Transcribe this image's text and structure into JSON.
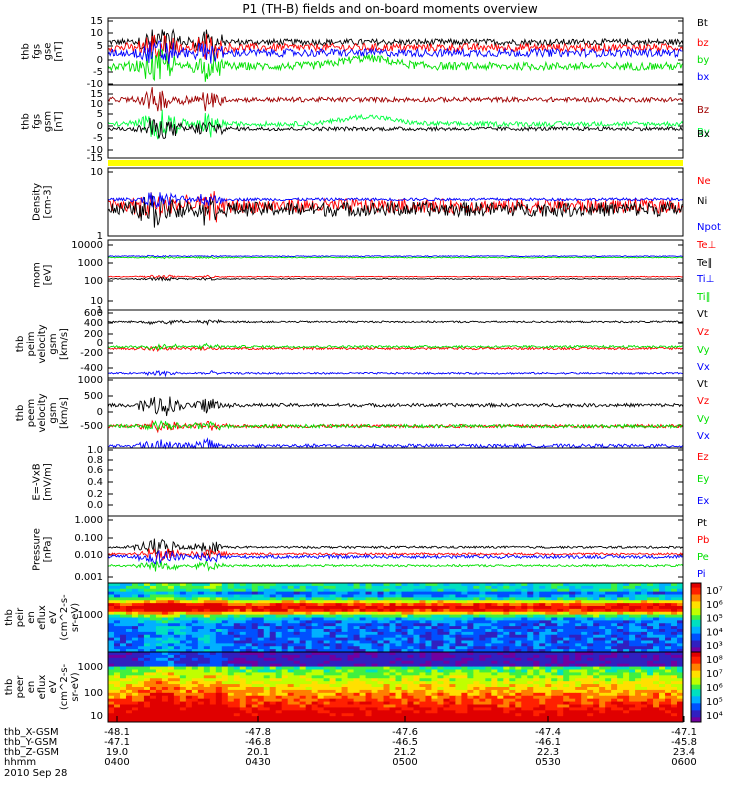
{
  "title": "P1 (TH-B) fields and on-board moments overview",
  "colors": {
    "black": "#000000",
    "red": "#ff0000",
    "darkred": "#a00000",
    "green": "#00e000",
    "lime": "#00ff40",
    "blue": "#0000ff",
    "yellow": "#ffff00"
  },
  "chart_data": [
    {
      "id": "fgs",
      "type": "line",
      "ylabel": [
        "thb",
        "fgs",
        "gse",
        "[nT]"
      ],
      "ylim": [
        -10,
        15
      ],
      "yscale": "linear",
      "ticks": [
        "15",
        "10",
        "5",
        "0",
        "-5",
        "-10"
      ],
      "series": [
        {
          "name": "Bt",
          "color": "#000000",
          "base": 6,
          "amp": 1.2,
          "burst": 6
        },
        {
          "name": "bz",
          "color": "#ff0000",
          "base": 4,
          "amp": 1.5,
          "burst": 6
        },
        {
          "name": "by",
          "color": "#00e000",
          "base": -3,
          "amp": 1.5,
          "burst": 6
        },
        {
          "name": "bx",
          "color": "#0000ff",
          "base": 2,
          "amp": 1.5,
          "burst": 5
        }
      ]
    },
    {
      "id": "fgs_gsm",
      "type": "line",
      "ylabel": [
        "thb",
        "fgs",
        "gsm",
        "[nT]"
      ],
      "ylim": [
        -15,
        15
      ],
      "yscale": "linear",
      "ticks": [
        "15",
        "10",
        "5",
        "0",
        "-5",
        "-10",
        "-15"
      ],
      "series": [
        {
          "name": "Bz",
          "color": "#a00000",
          "base": 9,
          "amp": 1.0,
          "burst": 5
        },
        {
          "name": "By",
          "color": "#00ff40",
          "base": -1,
          "amp": 1.0,
          "burst": 6
        },
        {
          "name": "Bx",
          "color": "#000000",
          "base": -3,
          "amp": 0.8,
          "burst": 5
        }
      ]
    },
    {
      "id": "density",
      "type": "line",
      "ylabel": [
        "Density",
        "[cm-3]"
      ],
      "ylim": [
        1,
        15
      ],
      "yscale": "log",
      "ticks": [
        "10",
        "1"
      ],
      "series": [
        {
          "name": "Ne",
          "color": "#ff0000",
          "base": 3.3,
          "amp": 0.25,
          "burst": 0.6
        },
        {
          "name": "Ni",
          "color": "#000000",
          "base": 2.9,
          "amp": 0.25,
          "burst": 0.5
        },
        {
          "name": "Npot",
          "color": "#0000ff",
          "base": 4.3,
          "amp": 0.05,
          "burst": 0.3
        }
      ]
    },
    {
      "id": "temp",
      "type": "line",
      "ylabel": [
        "mom",
        "[eV]"
      ],
      "ylim": [
        1,
        10000
      ],
      "yscale": "log",
      "ticks": [
        "10000",
        "1000",
        "100",
        "10",
        "1"
      ],
      "series": [
        {
          "name": "Te⊥",
          "color": "#ff0000",
          "base": 80,
          "amp": 0.05,
          "burst": 0.2
        },
        {
          "name": "Te∥",
          "color": "#000000",
          "base": 60,
          "amp": 0.05,
          "burst": 0.2
        },
        {
          "name": "Ti⊥",
          "color": "#0000ff",
          "base": 1200,
          "amp": 0.05,
          "burst": 0.1
        },
        {
          "name": "Ti∥",
          "color": "#00e000",
          "base": 1000,
          "amp": 0.05,
          "burst": 0.1
        }
      ]
    },
    {
      "id": "peim",
      "type": "line",
      "ylabel": [
        "thb",
        "peim",
        "velocity",
        "gsm",
        "[km/s]"
      ],
      "ylim": [
        -500,
        650
      ],
      "yscale": "linear",
      "ticks": [
        "600",
        "400",
        "200",
        "0",
        "-200",
        "-400"
      ],
      "series": [
        {
          "name": "Vt",
          "color": "#000000",
          "base": 450,
          "amp": 15,
          "burst": 40
        },
        {
          "name": "Vz",
          "color": "#ff0000",
          "base": 0,
          "amp": 20,
          "burst": 40
        },
        {
          "name": "Vy",
          "color": "#00e000",
          "base": 30,
          "amp": 20,
          "burst": 50
        },
        {
          "name": "Vx",
          "color": "#0000ff",
          "base": -420,
          "amp": 15,
          "burst": 40
        }
      ]
    },
    {
      "id": "peem",
      "type": "line",
      "ylabel": [
        "thb",
        "peem",
        "velocity",
        "gsm",
        "[km/s]"
      ],
      "ylim": [
        -500,
        1100
      ],
      "yscale": "linear",
      "ticks": [
        "1000",
        "500",
        "0",
        "-500"
      ],
      "series": [
        {
          "name": "Vt",
          "color": "#000000",
          "base": 480,
          "amp": 40,
          "burst": 250
        },
        {
          "name": "Vz",
          "color": "#ff0000",
          "base": 0,
          "amp": 40,
          "burst": 120
        },
        {
          "name": "Vy",
          "color": "#00e000",
          "base": 0,
          "amp": 40,
          "burst": 120
        },
        {
          "name": "Vx",
          "color": "#0000ff",
          "base": -450,
          "amp": 40,
          "burst": 200
        }
      ]
    },
    {
      "id": "efield",
      "type": "line",
      "ylabel": [
        "E=-VxB",
        "[mV/m]"
      ],
      "ylim": [
        0,
        1
      ],
      "yscale": "linear",
      "ticks": [
        "1.0",
        "0.8",
        "0.6",
        "0.4",
        "0.2",
        "0.0"
      ],
      "series": [
        {
          "name": "Ez",
          "color": "#ff0000"
        },
        {
          "name": "Ey",
          "color": "#00e000"
        },
        {
          "name": "Ex",
          "color": "#0000ff"
        }
      ]
    },
    {
      "id": "pressure",
      "type": "line",
      "ylabel": [
        "Pressure",
        "[nPa]"
      ],
      "ylim": [
        0.001,
        1.0
      ],
      "yscale": "log",
      "ticks": [
        "1.000",
        "0.100",
        "0.010",
        "0.001"
      ],
      "series": [
        {
          "name": "Pt",
          "color": "#000000",
          "base": 0.04,
          "amp": 0.1,
          "burst": 0.8
        },
        {
          "name": "Pb",
          "color": "#ff0000",
          "base": 0.02,
          "amp": 0.1,
          "burst": 0.6
        },
        {
          "name": "Pe",
          "color": "#00e000",
          "base": 0.006,
          "amp": 0.1,
          "burst": 0.5
        },
        {
          "name": "Pi",
          "color": "#0000ff",
          "base": 0.015,
          "amp": 0.15,
          "burst": 0.6
        }
      ]
    },
    {
      "id": "peir",
      "type": "heatmap",
      "ylabel": [
        "thb",
        "peir",
        "en",
        "eflux",
        "eV",
        "(cm^2-s-",
        "sr-eV)"
      ],
      "ticks": [
        "1000"
      ],
      "colorbar_ticks": [
        "10⁷",
        "10⁶",
        "10⁵",
        "10⁴",
        "10³"
      ]
    },
    {
      "id": "peer",
      "type": "heatmap",
      "ylabel": [
        "thb",
        "peer",
        "en",
        "eflux",
        "eV",
        "(cm^2-s-",
        "sr-eV)"
      ],
      "ticks": [
        "1000",
        "100",
        "10"
      ],
      "colorbar_ticks": [
        "10⁸",
        "10⁷",
        "10⁶",
        "10⁵",
        "10⁴"
      ]
    }
  ],
  "x_axis": {
    "labels": [
      "thb_X-GSM",
      "thb_Y-GSM",
      "thb_Z-GSM",
      "hhmm",
      "2010 Sep 28"
    ],
    "ticks": [
      {
        "x": "-48.1",
        "y": "-47.1",
        "z": "19.0",
        "t": "0400"
      },
      {
        "x": "-47.8",
        "y": "-46.8",
        "z": "20.1",
        "t": "0430"
      },
      {
        "x": "-47.6",
        "y": "-46.5",
        "z": "21.2",
        "t": "0500"
      },
      {
        "x": "-47.4",
        "y": "-46.1",
        "z": "22.3",
        "t": "0530"
      },
      {
        "x": "-47.1",
        "y": "-45.8",
        "z": "23.4",
        "t": "0600"
      }
    ]
  }
}
